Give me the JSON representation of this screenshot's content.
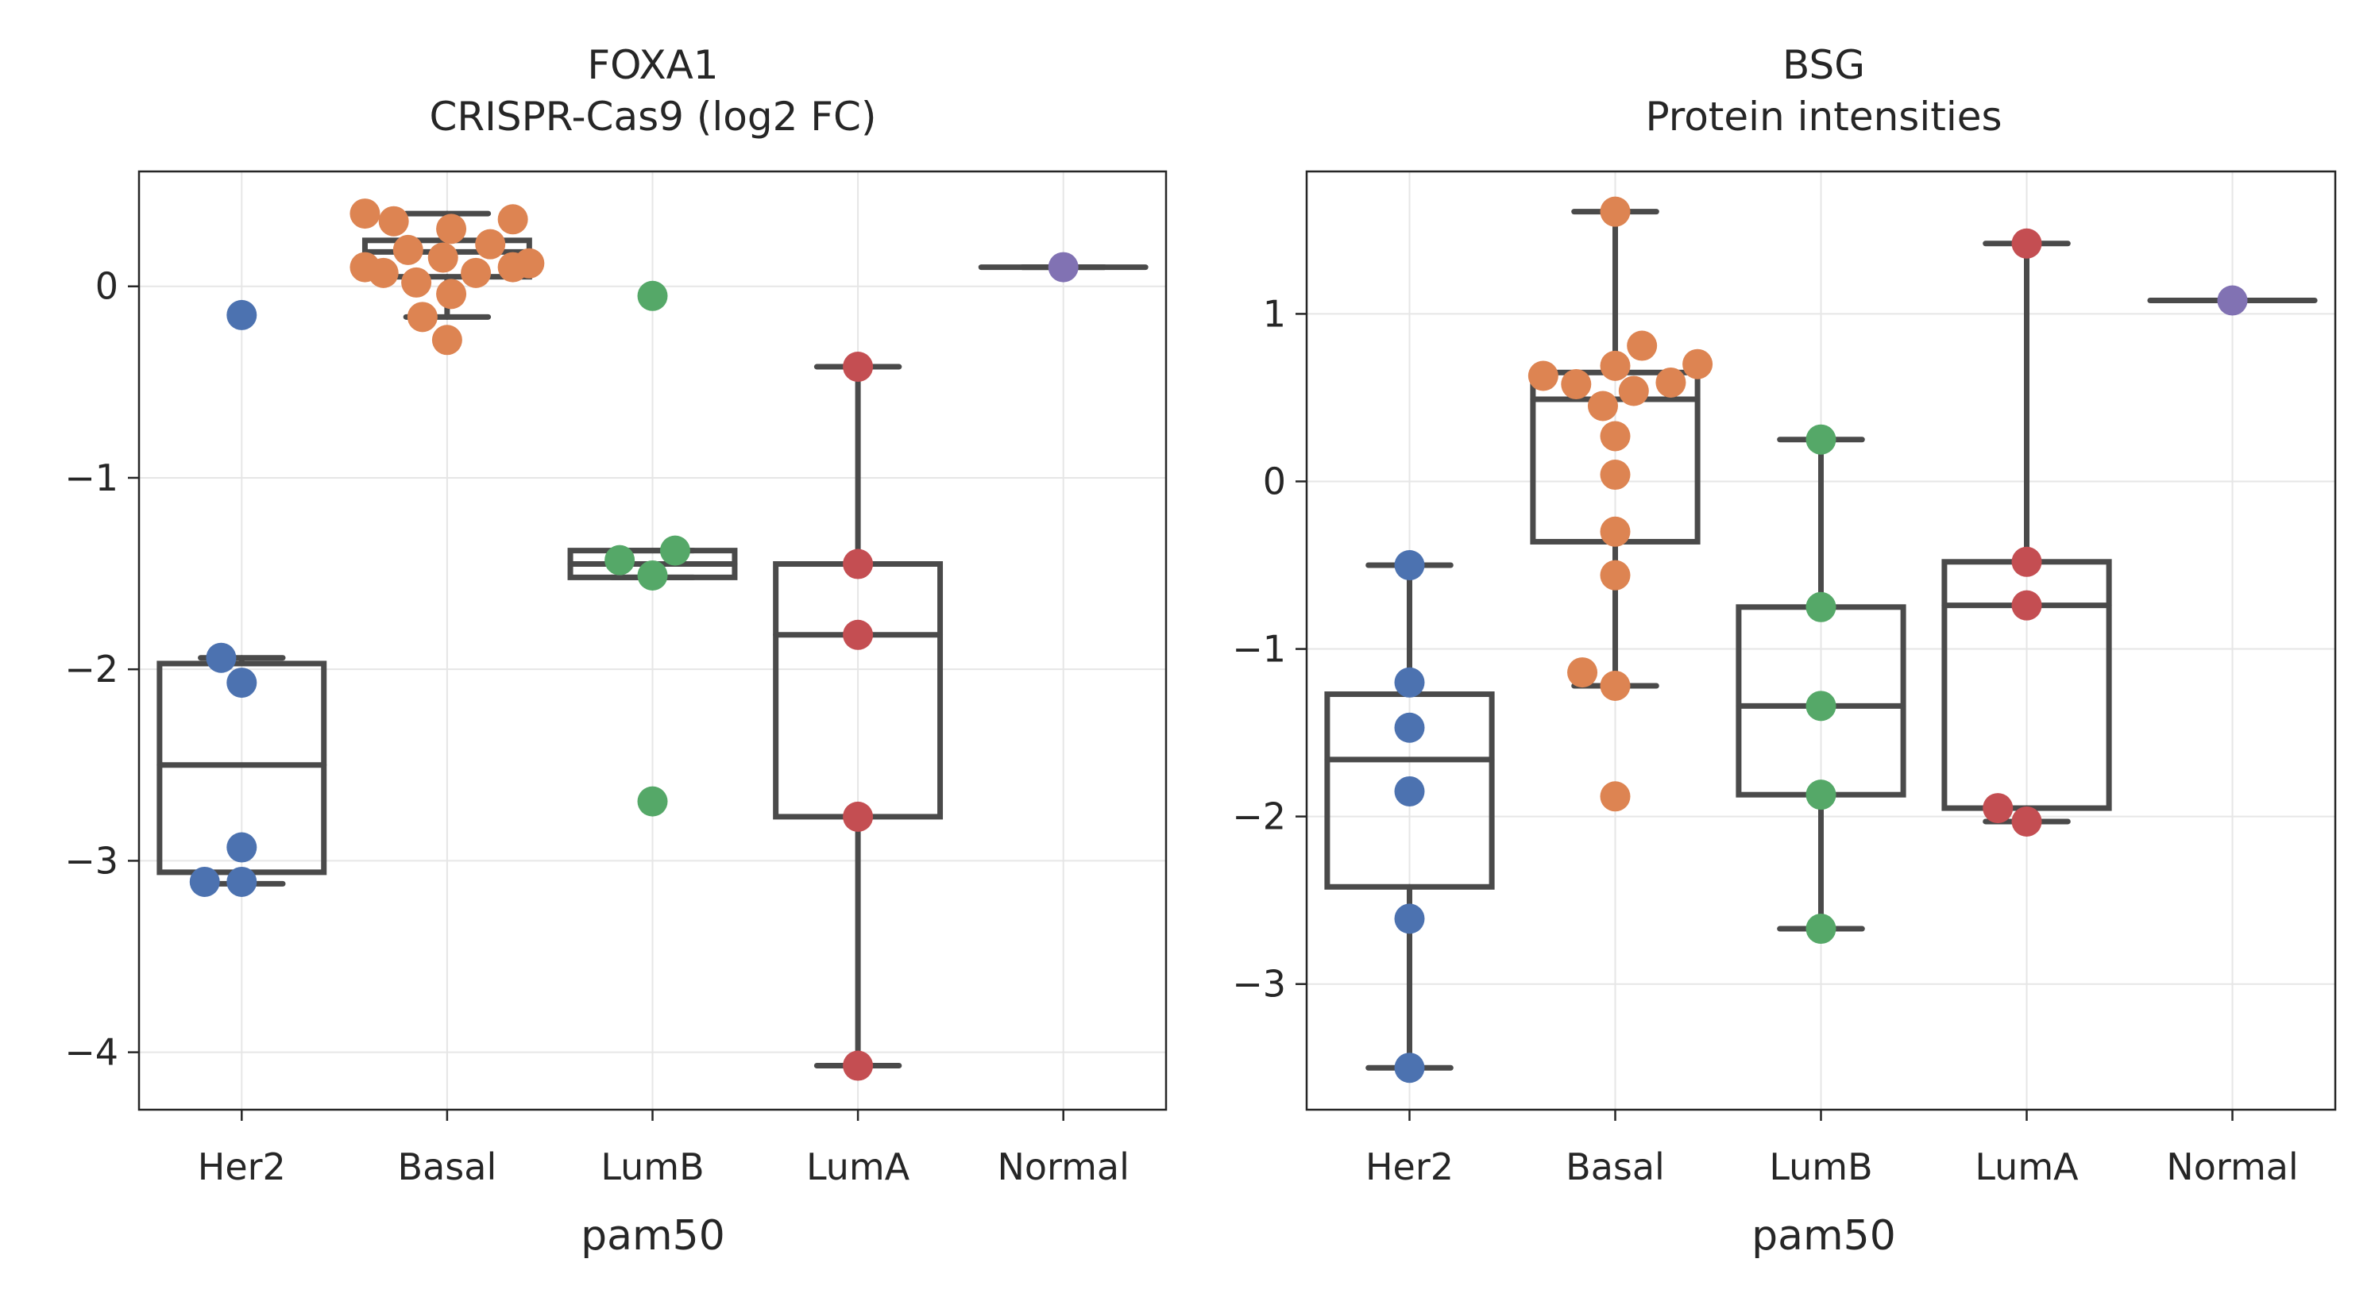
{
  "colors": {
    "Her2": "#4c72b0",
    "Basal": "#dd8452",
    "LumB": "#55a868",
    "LumA": "#c44e52",
    "Normal": "#8172b3",
    "box_stroke": "#4a4a4a",
    "grid": "#e6e6e6",
    "spine": "#262626"
  },
  "chart_data": [
    {
      "type": "box",
      "title_line1": "FOXA1",
      "title_line2": "CRISPR-Cas9 (log2 FC)",
      "xlabel": "pam50",
      "ylabel": "",
      "categories": [
        "Her2",
        "Basal",
        "LumB",
        "LumA",
        "Normal"
      ],
      "ylim": [
        -4.3,
        0.6
      ],
      "yticks": [
        0,
        -1,
        -2,
        -3,
        -4
      ],
      "ytick_labels": [
        "0",
        "−1",
        "−2",
        "−3",
        "−4"
      ],
      "grid": true,
      "boxes": [
        {
          "category": "Her2",
          "q1": -3.06,
          "median": -2.5,
          "q3": -1.97,
          "whisker_low": -3.12,
          "whisker_high": -1.94
        },
        {
          "category": "Basal",
          "q1": 0.05,
          "median": 0.18,
          "q3": 0.24,
          "whisker_low": -0.16,
          "whisker_high": 0.38
        },
        {
          "category": "LumB",
          "q1": -1.52,
          "median": -1.45,
          "q3": -1.38,
          "whisker_low": -1.52,
          "whisker_high": -1.38
        },
        {
          "category": "LumA",
          "q1": -2.77,
          "median": -1.82,
          "q3": -1.45,
          "whisker_low": -4.07,
          "whisker_high": -0.42
        },
        {
          "category": "Normal",
          "q1": 0.1,
          "median": 0.1,
          "q3": 0.1,
          "whisker_low": 0.1,
          "whisker_high": 0.1
        }
      ],
      "points": [
        {
          "category": "Her2",
          "offset": 0.0,
          "y": -0.15
        },
        {
          "category": "Her2",
          "offset": -0.1,
          "y": -1.94
        },
        {
          "category": "Her2",
          "offset": 0.0,
          "y": -2.07
        },
        {
          "category": "Her2",
          "offset": 0.0,
          "y": -2.93
        },
        {
          "category": "Her2",
          "offset": -0.18,
          "y": -3.11
        },
        {
          "category": "Her2",
          "offset": 0.0,
          "y": -3.11
        },
        {
          "category": "Basal",
          "offset": -0.4,
          "y": 0.38
        },
        {
          "category": "Basal",
          "offset": -0.26,
          "y": 0.34
        },
        {
          "category": "Basal",
          "offset": 0.32,
          "y": 0.35
        },
        {
          "category": "Basal",
          "offset": 0.02,
          "y": 0.3
        },
        {
          "category": "Basal",
          "offset": 0.21,
          "y": 0.22
        },
        {
          "category": "Basal",
          "offset": -0.19,
          "y": 0.19
        },
        {
          "category": "Basal",
          "offset": -0.02,
          "y": 0.15
        },
        {
          "category": "Basal",
          "offset": 0.4,
          "y": 0.12
        },
        {
          "category": "Basal",
          "offset": 0.32,
          "y": 0.1
        },
        {
          "category": "Basal",
          "offset": -0.4,
          "y": 0.1
        },
        {
          "category": "Basal",
          "offset": -0.31,
          "y": 0.07
        },
        {
          "category": "Basal",
          "offset": 0.14,
          "y": 0.07
        },
        {
          "category": "Basal",
          "offset": -0.15,
          "y": 0.02
        },
        {
          "category": "Basal",
          "offset": 0.02,
          "y": -0.04
        },
        {
          "category": "Basal",
          "offset": -0.12,
          "y": -0.16
        },
        {
          "category": "Basal",
          "offset": 0.0,
          "y": -0.28
        },
        {
          "category": "LumB",
          "offset": 0.0,
          "y": -0.05
        },
        {
          "category": "LumB",
          "offset": 0.11,
          "y": -1.38
        },
        {
          "category": "LumB",
          "offset": -0.16,
          "y": -1.43
        },
        {
          "category": "LumB",
          "offset": 0.0,
          "y": -1.51
        },
        {
          "category": "LumB",
          "offset": 0.0,
          "y": -2.69
        },
        {
          "category": "LumA",
          "offset": 0.0,
          "y": -0.42
        },
        {
          "category": "LumA",
          "offset": 0.0,
          "y": -1.45
        },
        {
          "category": "LumA",
          "offset": 0.0,
          "y": -1.82
        },
        {
          "category": "LumA",
          "offset": 0.0,
          "y": -2.77
        },
        {
          "category": "LumA",
          "offset": 0.0,
          "y": -4.07
        },
        {
          "category": "Normal",
          "offset": 0.0,
          "y": 0.1
        }
      ]
    },
    {
      "type": "box",
      "title_line1": "BSG",
      "title_line2": "Protein intensities",
      "xlabel": "pam50",
      "ylabel": "",
      "categories": [
        "Her2",
        "Basal",
        "LumB",
        "LumA",
        "Normal"
      ],
      "ylim": [
        -3.75,
        1.85
      ],
      "yticks": [
        1,
        0,
        -1,
        -2,
        -3
      ],
      "ytick_labels": [
        "1",
        "0",
        "−1",
        "−2",
        "−3"
      ],
      "grid": true,
      "boxes": [
        {
          "category": "Her2",
          "q1": -2.42,
          "median": -1.66,
          "q3": -1.27,
          "whisker_low": -3.5,
          "whisker_high": -0.5
        },
        {
          "category": "Basal",
          "q1": -0.36,
          "median": 0.49,
          "q3": 0.65,
          "whisker_low": -1.22,
          "whisker_high": 1.61
        },
        {
          "category": "LumB",
          "q1": -1.87,
          "median": -1.34,
          "q3": -0.75,
          "whisker_low": -2.67,
          "whisker_high": 0.25
        },
        {
          "category": "LumA",
          "q1": -1.95,
          "median": -0.74,
          "q3": -0.48,
          "whisker_low": -2.03,
          "whisker_high": 1.42
        },
        {
          "category": "Normal",
          "q1": 1.08,
          "median": 1.08,
          "q3": 1.08,
          "whisker_low": 1.08,
          "whisker_high": 1.08
        }
      ],
      "points": [
        {
          "category": "Her2",
          "offset": 0.0,
          "y": -0.5
        },
        {
          "category": "Her2",
          "offset": 0.0,
          "y": -1.2
        },
        {
          "category": "Her2",
          "offset": 0.0,
          "y": -1.47
        },
        {
          "category": "Her2",
          "offset": 0.0,
          "y": -1.85
        },
        {
          "category": "Her2",
          "offset": 0.0,
          "y": -2.61
        },
        {
          "category": "Her2",
          "offset": 0.0,
          "y": -3.5
        },
        {
          "category": "Basal",
          "offset": 0.0,
          "y": 1.61
        },
        {
          "category": "Basal",
          "offset": 0.13,
          "y": 0.81
        },
        {
          "category": "Basal",
          "offset": 0.4,
          "y": 0.7
        },
        {
          "category": "Basal",
          "offset": 0.0,
          "y": 0.69
        },
        {
          "category": "Basal",
          "offset": -0.35,
          "y": 0.63
        },
        {
          "category": "Basal",
          "offset": 0.27,
          "y": 0.59
        },
        {
          "category": "Basal",
          "offset": -0.19,
          "y": 0.58
        },
        {
          "category": "Basal",
          "offset": 0.09,
          "y": 0.54
        },
        {
          "category": "Basal",
          "offset": -0.06,
          "y": 0.45
        },
        {
          "category": "Basal",
          "offset": 0.0,
          "y": 0.27
        },
        {
          "category": "Basal",
          "offset": 0.0,
          "y": 0.04
        },
        {
          "category": "Basal",
          "offset": 0.0,
          "y": -0.3
        },
        {
          "category": "Basal",
          "offset": 0.0,
          "y": -0.56
        },
        {
          "category": "Basal",
          "offset": -0.16,
          "y": -1.14
        },
        {
          "category": "Basal",
          "offset": 0.0,
          "y": -1.22
        },
        {
          "category": "Basal",
          "offset": 0.0,
          "y": -1.88
        },
        {
          "category": "LumB",
          "offset": 0.0,
          "y": 0.25
        },
        {
          "category": "LumB",
          "offset": 0.0,
          "y": -0.75
        },
        {
          "category": "LumB",
          "offset": 0.0,
          "y": -1.34
        },
        {
          "category": "LumB",
          "offset": 0.0,
          "y": -1.87
        },
        {
          "category": "LumB",
          "offset": 0.0,
          "y": -2.67
        },
        {
          "category": "LumA",
          "offset": 0.0,
          "y": 1.42
        },
        {
          "category": "LumA",
          "offset": 0.0,
          "y": -0.48
        },
        {
          "category": "LumA",
          "offset": 0.0,
          "y": -0.74
        },
        {
          "category": "LumA",
          "offset": -0.14,
          "y": -1.95
        },
        {
          "category": "LumA",
          "offset": 0.0,
          "y": -2.03
        },
        {
          "category": "Normal",
          "offset": 0.0,
          "y": 1.08
        }
      ]
    }
  ]
}
